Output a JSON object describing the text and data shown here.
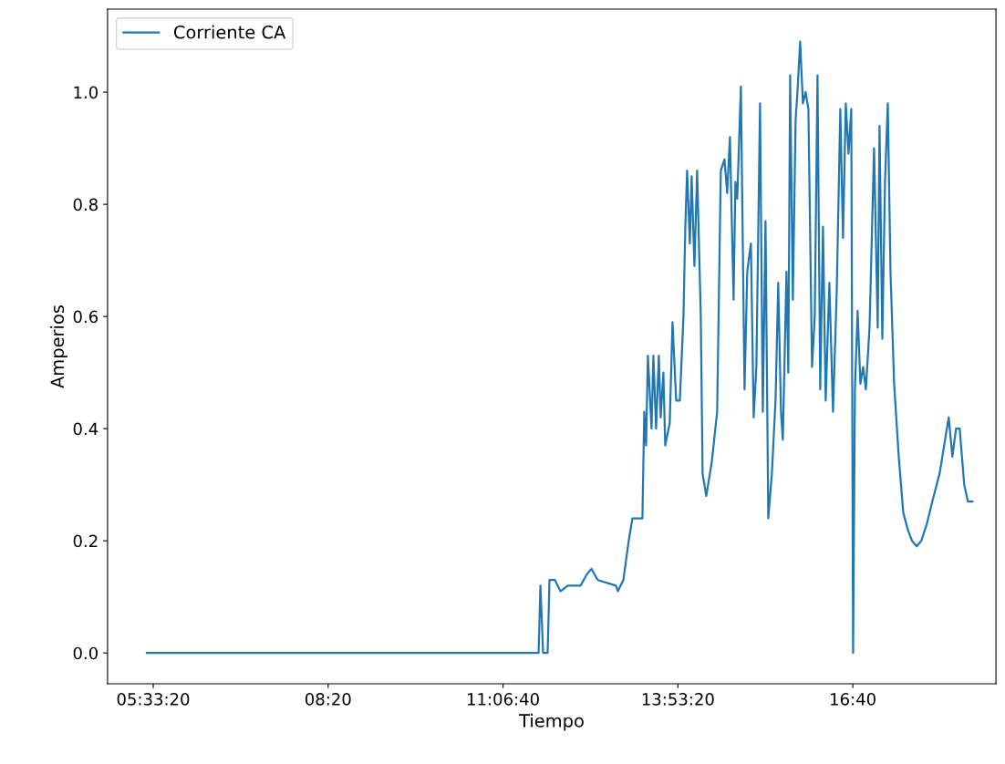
{
  "chart_data": {
    "type": "line",
    "xlabel": "Tiempo",
    "ylabel": "Amperios",
    "x": [
      5.454,
      11.676,
      11.705,
      11.748,
      11.82,
      11.849,
      11.936,
      12.023,
      12.139,
      12.341,
      12.443,
      12.515,
      12.616,
      12.905,
      12.935,
      13.022,
      13.108,
      13.166,
      13.325,
      13.354,
      13.383,
      13.412,
      13.47,
      13.499,
      13.542,
      13.586,
      13.615,
      13.658,
      13.687,
      13.759,
      13.803,
      13.861,
      13.919,
      13.977,
      14.006,
      14.035,
      14.078,
      14.107,
      14.151,
      14.194,
      14.252,
      14.281,
      14.339,
      14.426,
      14.512,
      14.57,
      14.628,
      14.671,
      14.715,
      14.773,
      14.802,
      14.831,
      14.889,
      14.947,
      14.99,
      15.048,
      15.092,
      15.135,
      15.193,
      15.237,
      15.28,
      15.324,
      15.381,
      15.439,
      15.482,
      15.526,
      15.555,
      15.613,
      15.642,
      15.671,
      15.714,
      15.758,
      15.787,
      15.83,
      15.874,
      15.917,
      15.961,
      16.019,
      16.062,
      16.106,
      16.149,
      16.193,
      16.236,
      16.294,
      16.352,
      16.41,
      16.468,
      16.511,
      16.555,
      16.598,
      16.642,
      16.671,
      16.7,
      16.743,
      16.787,
      16.83,
      16.874,
      16.932,
      17.004,
      17.062,
      17.091,
      17.135,
      17.178,
      17.222,
      17.265,
      17.323,
      17.396,
      17.468,
      17.54,
      17.607,
      17.682,
      17.755,
      17.842,
      17.929,
      18.045,
      18.132,
      18.19,
      18.248,
      18.306,
      18.364,
      18.436,
      18.494,
      18.567
    ],
    "series": [
      {
        "name": "Corriente CA",
        "color": "#1f77b4",
        "values": [
          0,
          0,
          0.12,
          0,
          0,
          0.13,
          0.13,
          0.11,
          0.12,
          0.12,
          0.14,
          0.15,
          0.13,
          0.12,
          0.11,
          0.13,
          0.2,
          0.24,
          0.24,
          0.43,
          0.37,
          0.53,
          0.4,
          0.53,
          0.4,
          0.53,
          0.42,
          0.5,
          0.37,
          0.41,
          0.59,
          0.45,
          0.45,
          0.6,
          0.76,
          0.86,
          0.73,
          0.85,
          0.69,
          0.86,
          0.6,
          0.32,
          0.28,
          0.34,
          0.43,
          0.86,
          0.88,
          0.82,
          0.92,
          0.63,
          0.84,
          0.81,
          1.01,
          0.47,
          0.68,
          0.73,
          0.42,
          0.51,
          0.98,
          0.43,
          0.77,
          0.24,
          0.32,
          0.45,
          0.66,
          0.43,
          0.38,
          0.68,
          0.5,
          1.03,
          0.63,
          0.95,
          1.0,
          1.09,
          0.98,
          1.0,
          0.97,
          0.51,
          0.6,
          1.03,
          0.47,
          0.76,
          0.45,
          0.66,
          0.43,
          0.64,
          0.97,
          0.74,
          0.98,
          0.89,
          0.97,
          0,
          0.47,
          0.61,
          0.48,
          0.51,
          0.47,
          0.58,
          0.9,
          0.58,
          0.94,
          0.56,
          0.84,
          0.98,
          0.68,
          0.48,
          0.35,
          0.25,
          0.22,
          0.2,
          0.19,
          0.2,
          0.23,
          0.27,
          0.32,
          0.38,
          0.42,
          0.35,
          0.4,
          0.4,
          0.3,
          0.27,
          0.27
        ]
      }
    ],
    "xlim": [
      4.83,
      18.94
    ],
    "xticks": [
      {
        "value": 5.5556,
        "label": "05:33:20"
      },
      {
        "value": 8.3333,
        "label": "08:20"
      },
      {
        "value": 11.1111,
        "label": "11:06:40"
      },
      {
        "value": 13.8889,
        "label": "13:53:20"
      },
      {
        "value": 16.6667,
        "label": "16:40"
      }
    ],
    "ylim": [
      -0.055,
      1.148
    ],
    "yticks": [
      {
        "value": 0,
        "label": "0.0"
      },
      {
        "value": 0.2,
        "label": "0.2"
      },
      {
        "value": 0.4,
        "label": "0.4"
      },
      {
        "value": 0.6,
        "label": "0.6"
      },
      {
        "value": 0.8,
        "label": "0.8"
      },
      {
        "value": 1.0,
        "label": "1.0"
      }
    ],
    "legend": "top left"
  }
}
